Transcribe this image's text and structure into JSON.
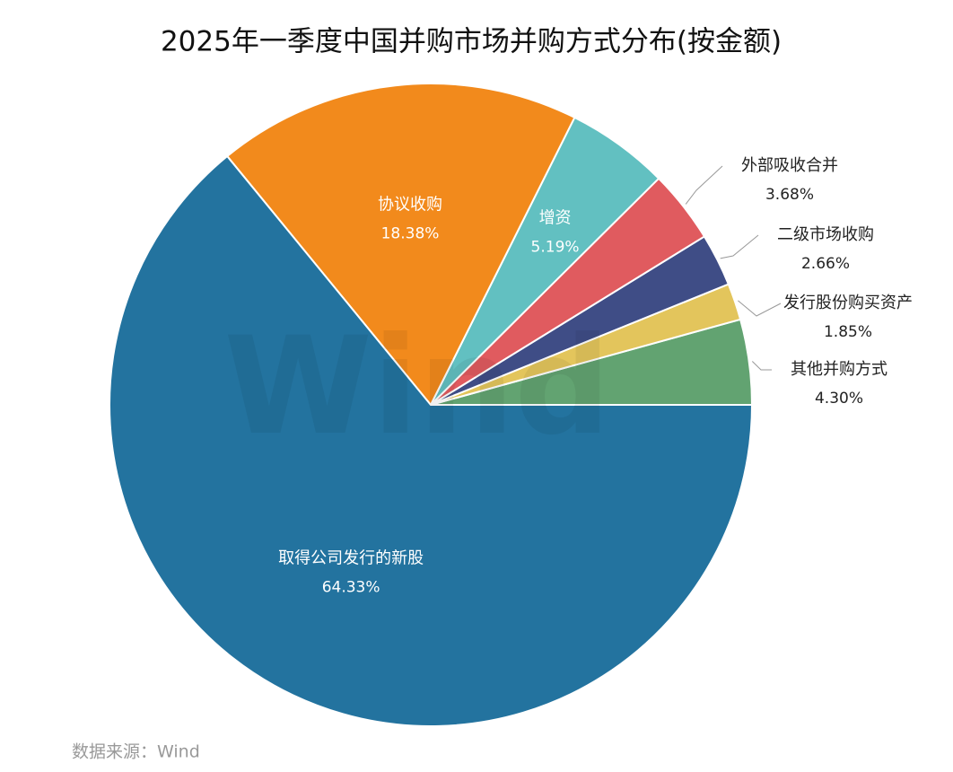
{
  "chart_data": {
    "type": "pie",
    "title": "2025年一季度中国并购市场并购方式分布(按金额)",
    "categories": [
      "其他并购方式",
      "发行股份购买资产",
      "二级市场收购",
      "外部吸收合并",
      "增资",
      "协议收购",
      "取得公司发行的新股"
    ],
    "values": [
      4.3,
      1.85,
      2.66,
      3.68,
      5.19,
      18.38,
      64.33
    ],
    "value_labels": [
      "4.30%",
      "1.85%",
      "2.66%",
      "3.68%",
      "5.19%",
      "18.38%",
      "64.33%"
    ],
    "colors": [
      "#62a371",
      "#e3c55c",
      "#3f4d86",
      "#e05b5f",
      "#62c0c1",
      "#f28a1c",
      "#23739f"
    ],
    "watermark": "Wind",
    "source": "数据来源：Wind"
  }
}
